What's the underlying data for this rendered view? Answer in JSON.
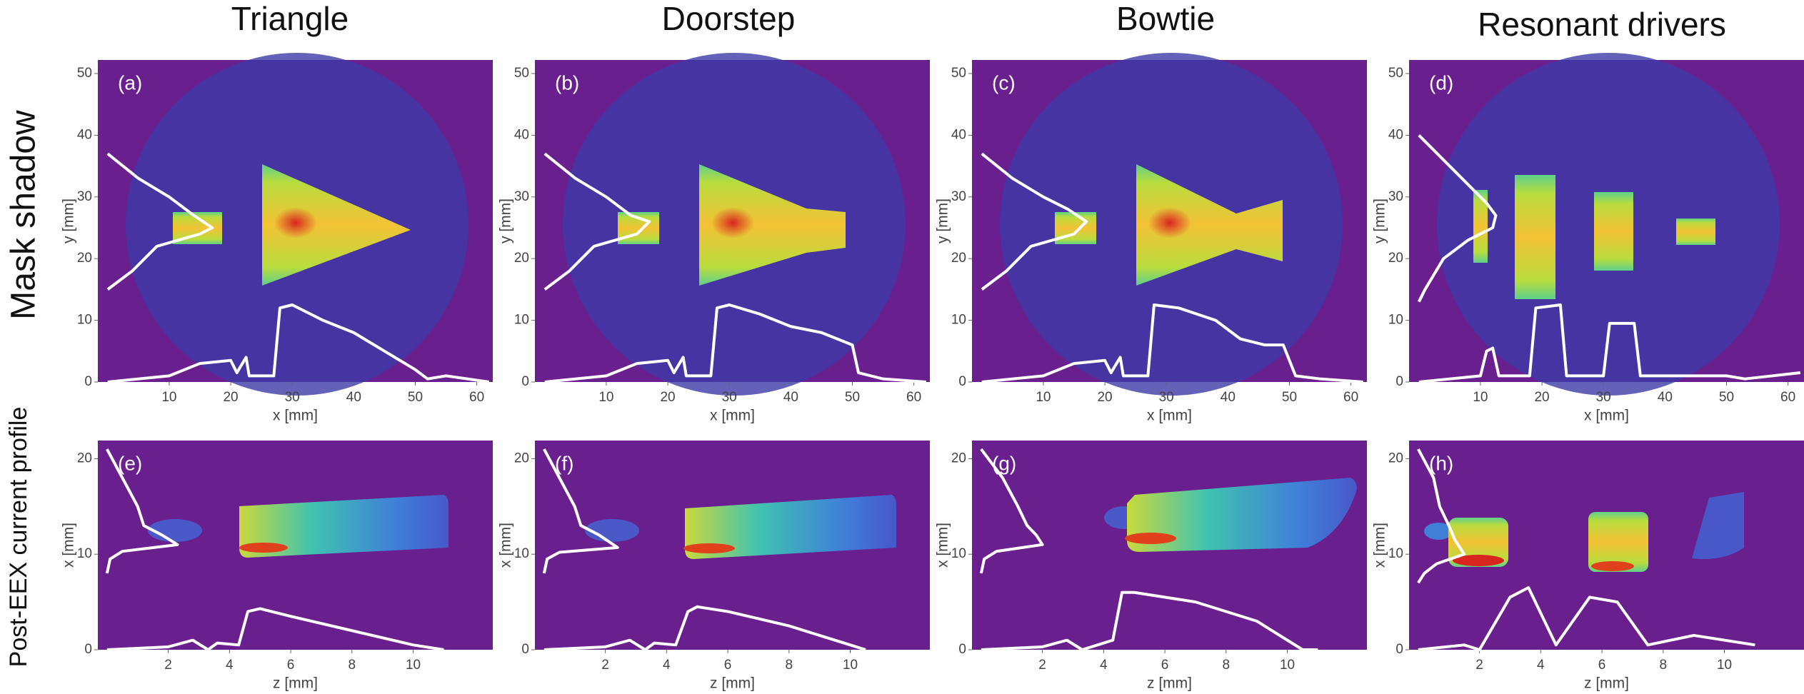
{
  "figure": {
    "column_titles": [
      "Triangle",
      "Doorstep",
      "Bowtie",
      "Resonant drivers"
    ],
    "row_titles": [
      "Mask shadow",
      "Post-EEX current profile"
    ]
  },
  "chart_data": [
    {
      "type": "image",
      "panel_label": "(a)",
      "xlabel": "x [mm]",
      "ylabel": "y [mm]",
      "profile_color": "#ffffff",
      "xlim": [
        -1.6,
        62.6
      ],
      "ylim": [
        0,
        52.2
      ],
      "xticks": [
        10,
        20,
        30,
        40,
        50,
        60
      ],
      "yticks": [
        0,
        10,
        20,
        30,
        40,
        50
      ],
      "x_profile": {
        "x": [
          0,
          10,
          15,
          20,
          21,
          22.5,
          23,
          27,
          28,
          30,
          35,
          40,
          45,
          50,
          52,
          55,
          62
        ],
        "values": [
          0,
          1,
          3,
          3.5,
          1.5,
          4,
          1,
          1,
          12,
          12.5,
          10,
          8,
          5,
          2,
          0.5,
          1,
          0
        ]
      },
      "y_profile": {
        "y": [
          37,
          33,
          30,
          27,
          25,
          24,
          22,
          18,
          15
        ],
        "values": [
          0,
          5,
          10,
          14,
          17,
          15,
          8,
          4,
          0
        ]
      }
    },
    {
      "type": "image",
      "panel_label": "(b)",
      "xlabel": "x [mm]",
      "ylabel": "y [mm]",
      "profile_color": "#ffffff",
      "xlim": [
        -1.6,
        62.6
      ],
      "ylim": [
        0,
        52.2
      ],
      "xticks": [
        10,
        20,
        30,
        40,
        50,
        60
      ],
      "yticks": [
        0,
        10,
        20,
        30,
        40,
        50
      ],
      "x_profile": {
        "x": [
          0,
          10,
          15,
          20,
          21,
          22.5,
          23,
          27,
          28,
          30,
          35,
          40,
          45,
          50,
          51,
          55,
          62
        ],
        "values": [
          0,
          1,
          3,
          3.5,
          1.5,
          4,
          1,
          1,
          12,
          12.5,
          11,
          9,
          8,
          6,
          1.5,
          0.5,
          0
        ]
      },
      "y_profile": {
        "y": [
          37,
          33,
          30,
          27,
          26,
          24,
          22,
          18,
          15
        ],
        "values": [
          0,
          5,
          10,
          14,
          17,
          15,
          8,
          4,
          0
        ]
      }
    },
    {
      "type": "image",
      "panel_label": "(c)",
      "xlabel": "x [mm]",
      "ylabel": "y [mm]",
      "profile_color": "#ffffff",
      "xlim": [
        -1.6,
        62.6
      ],
      "ylim": [
        0,
        52.2
      ],
      "xticks": [
        10,
        20,
        30,
        40,
        50,
        60
      ],
      "yticks": [
        0,
        10,
        20,
        30,
        40,
        50
      ],
      "x_profile": {
        "x": [
          0,
          10,
          15,
          20,
          21,
          22.5,
          23,
          27,
          28,
          32,
          38,
          42,
          46,
          49,
          51,
          55,
          62
        ],
        "values": [
          0,
          1,
          3,
          3.5,
          1.5,
          4,
          1,
          1,
          12.5,
          12,
          10,
          7,
          6,
          6,
          1,
          0.5,
          0
        ]
      },
      "y_profile": {
        "y": [
          37,
          33,
          30,
          28,
          26,
          24,
          22,
          18,
          15
        ],
        "values": [
          0,
          5,
          10,
          14,
          17,
          15,
          8,
          4,
          0
        ]
      }
    },
    {
      "type": "image",
      "panel_label": "(d)",
      "xlabel": "x [mm]",
      "ylabel": "y [mm]",
      "profile_color": "#ffffff",
      "xlim": [
        -1.6,
        62.6
      ],
      "ylim": [
        0,
        52.2
      ],
      "xticks": [
        10,
        20,
        30,
        40,
        50,
        60
      ],
      "yticks": [
        0,
        10,
        20,
        30,
        40,
        50
      ],
      "x_profile": {
        "x": [
          0,
          10,
          11,
          12,
          13,
          18,
          19,
          23,
          24,
          30,
          31,
          35,
          36,
          44,
          50,
          53,
          62
        ],
        "values": [
          0,
          1,
          5,
          5.5,
          1,
          1,
          12,
          12.5,
          1,
          1,
          9.5,
          9.5,
          1,
          1,
          1,
          0.5,
          1.5
        ]
      },
      "y_profile": {
        "y": [
          40,
          35,
          31,
          29,
          27,
          25,
          23,
          20,
          15,
          13
        ],
        "values": [
          0,
          5,
          9,
          11,
          12.5,
          12,
          8,
          4,
          1,
          0
        ]
      }
    },
    {
      "type": "image",
      "panel_label": "(e)",
      "xlabel": "z [mm]",
      "ylabel": "x [mm]",
      "profile_color": "#ffffff",
      "xlim": [
        -0.3,
        12.6
      ],
      "ylim": [
        0,
        21.9
      ],
      "xticks": [
        2,
        4,
        6,
        8,
        10
      ],
      "yticks": [
        0,
        10,
        20
      ],
      "x_profile": {
        "x": [
          0,
          2,
          2.8,
          3.3,
          3.6,
          4.3,
          4.6,
          5,
          6,
          8,
          10,
          11
        ],
        "values": [
          0,
          0.3,
          1,
          0,
          0.7,
          0.5,
          4,
          4.3,
          3.5,
          2,
          0.5,
          0
        ]
      },
      "y_profile": {
        "y": [
          21,
          18,
          15,
          13,
          12,
          11,
          10.3,
          9.5,
          8
        ],
        "values": [
          0,
          0.5,
          1,
          1.2,
          1.8,
          2.3,
          0.5,
          0.1,
          0
        ]
      }
    },
    {
      "type": "image",
      "panel_label": "(f)",
      "xlabel": "z [mm]",
      "ylabel": "x [mm]",
      "profile_color": "#ffffff",
      "xlim": [
        -0.3,
        12.6
      ],
      "ylim": [
        0,
        21.9
      ],
      "xticks": [
        2,
        4,
        6,
        8,
        10
      ],
      "yticks": [
        0,
        10,
        20
      ],
      "x_profile": {
        "x": [
          0,
          2,
          2.8,
          3.3,
          3.6,
          4.3,
          4.7,
          5,
          6,
          8,
          10,
          10.5
        ],
        "values": [
          0,
          0.3,
          1,
          0,
          0.7,
          0.5,
          4,
          4.5,
          4,
          2.5,
          0.5,
          0
        ]
      },
      "y_profile": {
        "y": [
          21,
          18,
          15,
          13,
          12,
          10.7,
          10.2,
          9.5,
          8
        ],
        "values": [
          0,
          0.5,
          1,
          1.2,
          1.8,
          2.4,
          0.5,
          0.1,
          0
        ]
      }
    },
    {
      "type": "image",
      "panel_label": "(g)",
      "xlabel": "z [mm]",
      "ylabel": "x [mm]",
      "profile_color": "#ffffff",
      "xlim": [
        -0.3,
        12.6
      ],
      "ylim": [
        0,
        21.9
      ],
      "xticks": [
        2,
        4,
        6,
        8,
        10
      ],
      "yticks": [
        0,
        10,
        20
      ],
      "x_profile": {
        "x": [
          0,
          2,
          2.8,
          3.3,
          3.8,
          4.3,
          4.6,
          5,
          7,
          9,
          10.5,
          11
        ],
        "values": [
          0,
          0.3,
          1,
          0,
          0.5,
          1,
          6,
          6,
          5,
          3,
          0,
          0
        ]
      },
      "y_profile": {
        "y": [
          21,
          18,
          15,
          13,
          12,
          11,
          10.3,
          9.5,
          8
        ],
        "values": [
          0,
          0.7,
          1.2,
          1.5,
          1.8,
          2,
          0.5,
          0.1,
          0
        ]
      }
    },
    {
      "type": "image",
      "panel_label": "(h)",
      "xlabel": "z [mm]",
      "ylabel": "x [mm]",
      "profile_color": "#ffffff",
      "xlim": [
        -0.3,
        12.6
      ],
      "ylim": [
        0,
        21.9
      ],
      "xticks": [
        2,
        4,
        6,
        8,
        10
      ],
      "yticks": [
        0,
        10,
        20
      ],
      "x_profile": {
        "x": [
          0,
          1.5,
          2,
          3,
          3.6,
          4.5,
          5.6,
          6.5,
          7.5,
          9,
          11
        ],
        "values": [
          0,
          0.5,
          0,
          5.5,
          6.5,
          0.5,
          5.5,
          5,
          0.5,
          1.5,
          0.5
        ]
      },
      "y_profile": {
        "y": [
          21,
          18,
          15,
          13,
          11.5,
          10,
          9,
          8,
          7
        ],
        "values": [
          0,
          0.5,
          0.7,
          1,
          1.2,
          1.5,
          0.6,
          0.2,
          0
        ]
      }
    }
  ]
}
